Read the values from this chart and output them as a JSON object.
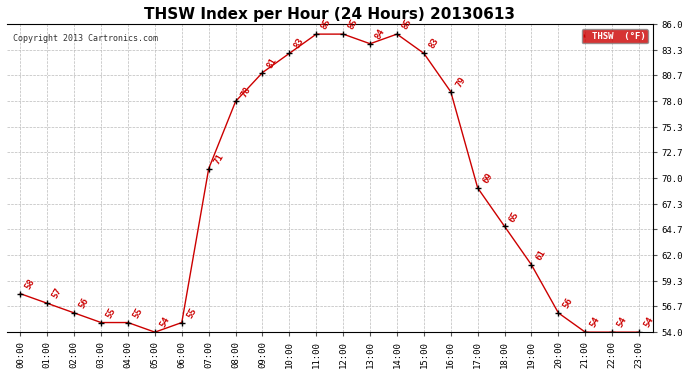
{
  "title": "THSW Index per Hour (24 Hours) 20130613",
  "copyright": "Copyright 2013 Cartronics.com",
  "legend_label": "THSW  (°F)",
  "hours": [
    "00:00",
    "01:00",
    "02:00",
    "03:00",
    "04:00",
    "05:00",
    "06:00",
    "07:00",
    "08:00",
    "09:00",
    "10:00",
    "11:00",
    "12:00",
    "13:00",
    "14:00",
    "15:00",
    "16:00",
    "17:00",
    "18:00",
    "19:00",
    "20:00",
    "21:00",
    "22:00",
    "23:00"
  ],
  "values": [
    58,
    57,
    56,
    55,
    55,
    54,
    55,
    71,
    78,
    81,
    83,
    85,
    85,
    84,
    85,
    83,
    79,
    69,
    65,
    61,
    56,
    54,
    54,
    54
  ],
  "ylim": [
    54.0,
    86.0
  ],
  "yticks": [
    54.0,
    56.7,
    59.3,
    62.0,
    64.7,
    67.3,
    70.0,
    72.7,
    75.3,
    78.0,
    80.7,
    83.3,
    86.0
  ],
  "line_color": "#cc0000",
  "marker_color": "#000000",
  "bg_color": "#ffffff",
  "grid_color": "#bbbbbb",
  "title_fontsize": 11,
  "label_fontsize": 6.5,
  "annotation_fontsize": 6.5,
  "legend_bg": "#cc0000",
  "legend_text_color": "#ffffff"
}
